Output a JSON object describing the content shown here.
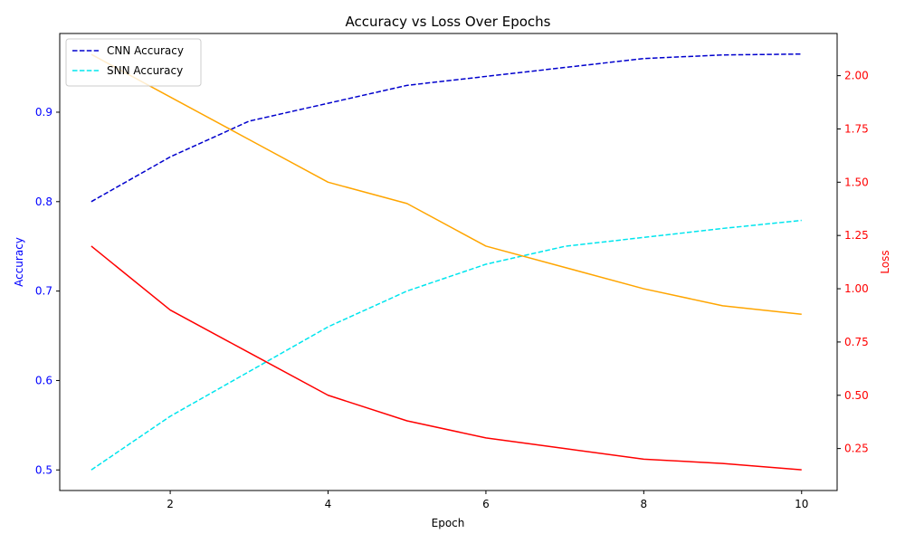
{
  "chart_data": {
    "type": "line",
    "title": "Accuracy vs Loss Over Epochs",
    "xlabel": "Epoch",
    "ylabel_left": "Accuracy",
    "ylabel_right": "Loss",
    "x": [
      1,
      2,
      3,
      4,
      5,
      6,
      7,
      8,
      9,
      10
    ],
    "xlim": [
      0.6,
      10.45
    ],
    "xticks": [
      2,
      4,
      6,
      8,
      10
    ],
    "ylim_left": [
      0.477,
      0.988
    ],
    "yticks_left": [
      0.5,
      0.6,
      0.7,
      0.8,
      0.9
    ],
    "ylim_right": [
      0.053,
      2.198
    ],
    "yticks_right": [
      0.25,
      0.5,
      0.75,
      1.0,
      1.25,
      1.5,
      1.75,
      2.0
    ],
    "left_axis_color": "#0000ff",
    "right_axis_color": "#ff0000",
    "grid": false,
    "legend_position": "top-left",
    "series": [
      {
        "name": "CNN Accuracy",
        "axis": "left",
        "style": "dashed",
        "color": "#0000cd",
        "values": [
          0.8,
          0.85,
          0.89,
          0.91,
          0.93,
          0.94,
          0.95,
          0.96,
          0.964,
          0.965
        ]
      },
      {
        "name": "SNN Accuracy",
        "axis": "left",
        "style": "dashed",
        "color": "#00e5ee",
        "values": [
          0.5,
          0.56,
          0.61,
          0.66,
          0.7,
          0.73,
          0.75,
          0.76,
          0.77,
          0.779
        ]
      },
      {
        "name": "",
        "axis": "right",
        "style": "solid",
        "color": "#ffa500",
        "values": [
          2.1,
          1.9,
          1.7,
          1.5,
          1.4,
          1.2,
          1.1,
          1.0,
          0.92,
          0.88
        ]
      },
      {
        "name": "",
        "axis": "right",
        "style": "solid",
        "color": "#ff0000",
        "values": [
          1.2,
          0.9,
          0.7,
          0.5,
          0.38,
          0.3,
          0.25,
          0.2,
          0.18,
          0.15
        ]
      }
    ]
  }
}
